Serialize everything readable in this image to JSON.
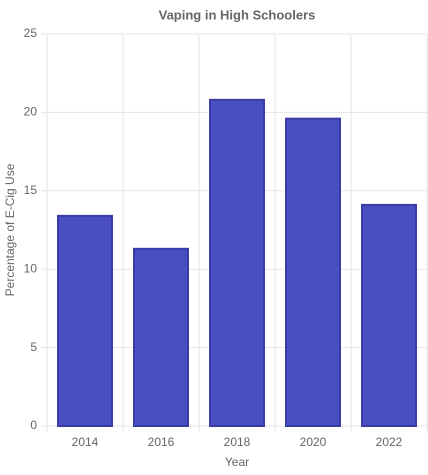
{
  "chart_data": {
    "type": "bar",
    "title": "Vaping in High Schoolers",
    "x_label": "Year",
    "y_label": "Percentage of E-Cig Use",
    "categories": [
      "2014",
      "2016",
      "2018",
      "2020",
      "2022"
    ],
    "values": [
      13.4,
      11.3,
      20.8,
      19.6,
      14.1
    ],
    "color": "#4a4fbf",
    "border_color": "#3a3aa6",
    "ylim": [
      0,
      25
    ],
    "yticks": [
      0,
      5,
      10,
      15,
      20,
      25
    ],
    "grid": true
  }
}
